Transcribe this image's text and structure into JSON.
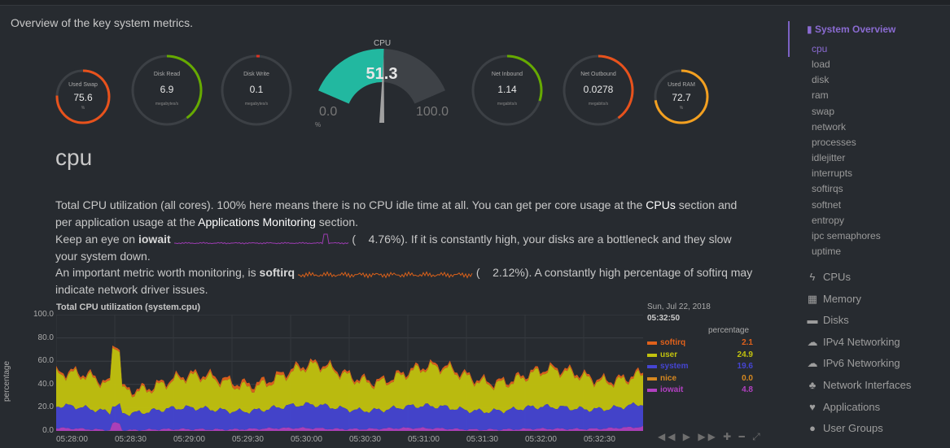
{
  "page": {
    "overview_text": "Overview of the key system metrics."
  },
  "gauges": [
    {
      "title": "Used Swap",
      "value": "75.6",
      "unit": "%",
      "fraction": 0.756,
      "color": "#e8521c"
    },
    {
      "title": "Disk Read",
      "value": "6.9",
      "unit": "megabytes/s",
      "fraction": 0.4,
      "color": "#66aa00"
    },
    {
      "title": "Disk Write",
      "value": "0.1",
      "unit": "megabytes/s",
      "fraction": 0.015,
      "color": "#dd3322"
    },
    {
      "title": "Net Inbound",
      "value": "1.14",
      "unit": "megabits/s",
      "fraction": 0.3,
      "color": "#66aa00"
    },
    {
      "title": "Net Outbound",
      "value": "0.0278",
      "unit": "megabits/s",
      "fraction": 0.4,
      "color": "#e8521c"
    },
    {
      "title": "Used RAM",
      "value": "72.7",
      "unit": "%",
      "fraction": 0.727,
      "color": "#f3a020"
    }
  ],
  "cpu_gauge": {
    "title": "CPU",
    "value": "51.3",
    "min": "0.0",
    "max": "100.0",
    "unit": "%",
    "fraction": 0.513,
    "color": "#22b8a0"
  },
  "section": {
    "title": "cpu",
    "desc": {
      "p1_a": "Total CPU utilization (all cores). 100% here means there is no CPU idle time at all. You can get per core usage at the ",
      "p1_link1": "CPUs",
      "p1_b": " section and per application usage at the ",
      "p1_link2": "Applications Monitoring",
      "p1_c": " section.",
      "p2_a": "Keep an eye on ",
      "p2_bold": "iowait",
      "p2_b": " (",
      "p2_val": "4.76%",
      "p2_c": "). If it is constantly high, your disks are a bottleneck and they slow your system down.",
      "p3_a": "An important metric worth monitoring, is ",
      "p3_bold": "softirq",
      "p3_b": " (",
      "p3_val": "2.12%",
      "p3_c": "). A constantly high percentage of softirq may indicate network driver issues."
    }
  },
  "chart_data": {
    "type": "area",
    "title": "Total CPU utilization (system.cpu)",
    "xlabel": "",
    "ylabel": "percentage",
    "ylim": [
      0,
      100
    ],
    "y_ticks": [
      "100.0",
      "80.0",
      "60.0",
      "40.0",
      "20.0",
      "0.0"
    ],
    "x_ticks": [
      "05:28:00",
      "05:28:30",
      "05:29:00",
      "05:29:30",
      "05:30:00",
      "05:30:30",
      "05:31:00",
      "05:31:30",
      "05:32:00",
      "05:32:30"
    ],
    "series": [
      {
        "name": "softirq",
        "color": "#e0611b",
        "values": [
          2,
          2,
          2,
          3,
          2,
          2,
          2,
          2,
          2,
          2
        ]
      },
      {
        "name": "user",
        "color": "#c2c20e",
        "values": [
          25,
          22,
          23,
          24,
          30,
          27,
          30,
          26,
          28,
          25
        ]
      },
      {
        "name": "system",
        "color": "#4545d2",
        "values": [
          18,
          16,
          17,
          17,
          19,
          17,
          18,
          17,
          18,
          19
        ]
      },
      {
        "name": "nice",
        "color": "#d68820",
        "values": [
          0,
          0,
          0,
          0,
          0,
          0,
          0,
          0,
          0,
          0
        ]
      },
      {
        "name": "iowait",
        "color": "#b140c0",
        "values": [
          2,
          1,
          1,
          2,
          2,
          2,
          2,
          1,
          2,
          3
        ]
      }
    ],
    "grid": true,
    "legend_position": "right"
  },
  "legend": {
    "date": "Sun, Jul 22, 2018",
    "time": "05:32:50",
    "units": "percentage",
    "rows": [
      {
        "name": "softirq",
        "value": "2.1",
        "color": "#e0611b"
      },
      {
        "name": "user",
        "value": "24.9",
        "color": "#c2c20e"
      },
      {
        "name": "system",
        "value": "19.6",
        "color": "#4545d2"
      },
      {
        "name": "nice",
        "value": "0.0",
        "color": "#d68820"
      },
      {
        "name": "iowait",
        "value": "4.8",
        "color": "#b140c0"
      }
    ],
    "controls": "◀◀ ▶ ▶▶ ✚ ━ ⤢"
  },
  "sidebar": {
    "main": "System Overview",
    "sub": [
      "cpu",
      "load",
      "disk",
      "ram",
      "swap",
      "network",
      "processes",
      "idlejitter",
      "interrupts",
      "softirqs",
      "softnet",
      "entropy",
      "ipc semaphores",
      "uptime"
    ],
    "sections": [
      {
        "label": "CPUs",
        "icon": "bolt-icon",
        "glyph": "ϟ"
      },
      {
        "label": "Memory",
        "icon": "microchip-icon",
        "glyph": "▦"
      },
      {
        "label": "Disks",
        "icon": "hdd-icon",
        "glyph": "▬"
      },
      {
        "label": "IPv4 Networking",
        "icon": "cloud-icon",
        "glyph": "☁"
      },
      {
        "label": "IPv6 Networking",
        "icon": "cloud-icon",
        "glyph": "☁"
      },
      {
        "label": "Network Interfaces",
        "icon": "sitemap-icon",
        "glyph": "♣"
      },
      {
        "label": "Applications",
        "icon": "heartbeat-icon",
        "glyph": "♥"
      },
      {
        "label": "User Groups",
        "icon": "users-icon",
        "glyph": "●"
      }
    ]
  }
}
